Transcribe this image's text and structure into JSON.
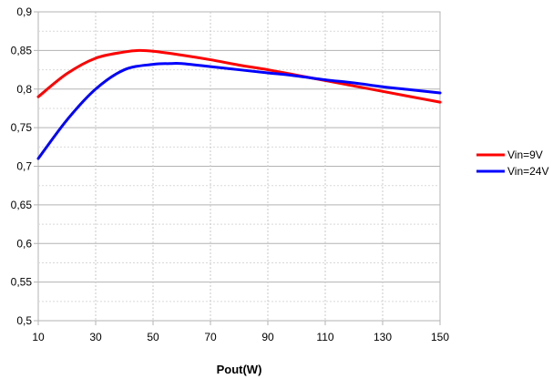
{
  "chart_data": {
    "type": "line",
    "title": "",
    "xlabel": "Pout(W)",
    "ylabel": "",
    "xlim": [
      10,
      150
    ],
    "ylim": [
      0.5,
      0.9
    ],
    "xticks": [
      10,
      30,
      50,
      70,
      90,
      110,
      130,
      150
    ],
    "xtick_labels": [
      "10",
      "30",
      "50",
      "70",
      "90",
      "110",
      "130",
      "150"
    ],
    "yticks": [
      0.5,
      0.55,
      0.6,
      0.65,
      0.7,
      0.75,
      0.8,
      0.85,
      0.9
    ],
    "ytick_labels": [
      "0,5",
      "0,55",
      "0,6",
      "0,65",
      "0,7",
      "0,75",
      "0,8",
      "0,85",
      "0,9"
    ],
    "grid": true,
    "legend_position": "right",
    "series": [
      {
        "name": "Vin=9V",
        "color": "#ff0000",
        "x": [
          10,
          20,
          30,
          40,
          45,
          50,
          60,
          70,
          80,
          90,
          100,
          110,
          120,
          130,
          140,
          150
        ],
        "y": [
          0.79,
          0.82,
          0.84,
          0.848,
          0.85,
          0.849,
          0.844,
          0.838,
          0.831,
          0.825,
          0.818,
          0.811,
          0.804,
          0.797,
          0.79,
          0.783
        ]
      },
      {
        "name": "Vin=24V",
        "color": "#0000ff",
        "x": [
          10,
          20,
          30,
          40,
          50,
          56,
          60,
          70,
          80,
          90,
          100,
          110,
          120,
          130,
          140,
          150
        ],
        "y": [
          0.71,
          0.76,
          0.8,
          0.825,
          0.832,
          0.833,
          0.833,
          0.829,
          0.825,
          0.821,
          0.817,
          0.812,
          0.808,
          0.803,
          0.799,
          0.795
        ]
      }
    ]
  }
}
